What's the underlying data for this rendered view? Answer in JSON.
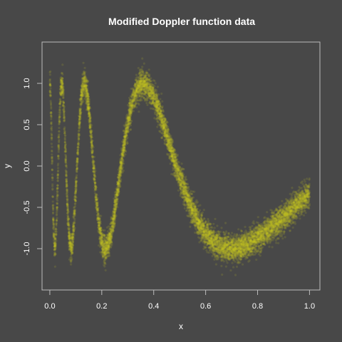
{
  "chart_data": {
    "type": "scatter",
    "title": "Modified Doppler function data",
    "xlabel": "x",
    "ylabel": "y",
    "xlim": [
      -0.03,
      1.04
    ],
    "ylim": [
      -1.5,
      1.5
    ],
    "x_ticks": [
      0.0,
      0.2,
      0.4,
      0.6,
      0.8,
      1.0
    ],
    "x_tick_labels": [
      "0.0",
      "0.2",
      "0.4",
      "0.6",
      "0.8",
      "1.0"
    ],
    "y_ticks": [
      -1.0,
      -0.5,
      0.0,
      0.5,
      1.0
    ],
    "y_tick_labels": [
      "-1.0",
      "-0.5",
      "0.0",
      "0.5",
      "1.0"
    ],
    "grid": false,
    "legend": "none",
    "series": [
      {
        "function": "y = sin(4 / (x + 0.15)) + noise",
        "x_range": [
          0.0,
          1.0
        ],
        "noise_sd": 0.08,
        "point_count": 9000,
        "color": "#cccc22",
        "opacity": 0.15
      }
    ]
  },
  "colors": {
    "background": "#484848",
    "plot_box": "#bdbdbd",
    "text": "#ffffff",
    "points": "#cccc22"
  }
}
